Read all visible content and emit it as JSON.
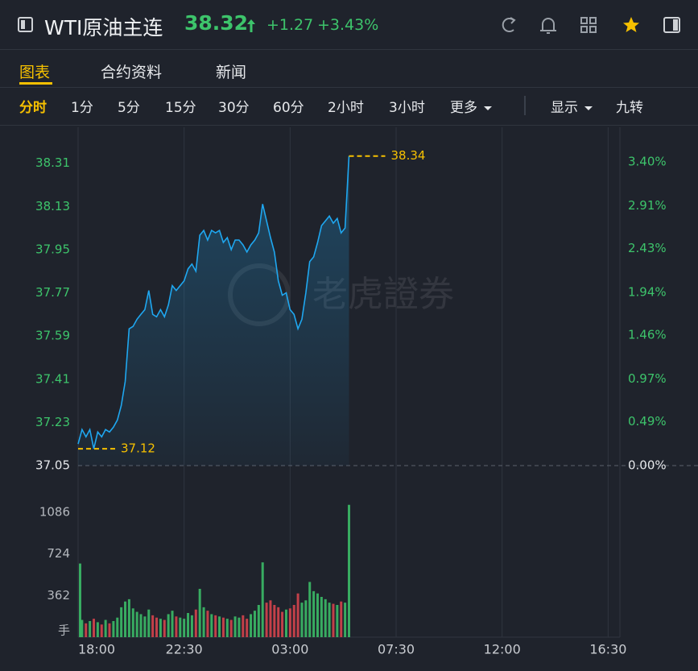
{
  "header": {
    "title": "WTI原油主连",
    "price": "38.32",
    "change": "+1.27",
    "change_pct": "+3.43%"
  },
  "tabs": [
    "图表",
    "合约资料",
    "新闻"
  ],
  "periods": [
    "分时",
    "1分",
    "5分",
    "15分",
    "30分",
    "60分",
    "2小时",
    "3小时",
    "更多",
    "显示",
    "九转"
  ],
  "watermark": "老虎證券",
  "chart_data": [
    {
      "type": "line",
      "color": "#1fa7f0",
      "x": [
        "18:00",
        "18:10",
        "18:20",
        "18:30",
        "18:40",
        "18:50",
        "19:00",
        "19:10",
        "19:20",
        "19:30",
        "19:40",
        "19:50",
        "20:00",
        "20:10",
        "20:20",
        "20:30",
        "20:40",
        "20:50",
        "21:00",
        "21:10",
        "21:20",
        "21:30",
        "21:40",
        "21:50",
        "22:00",
        "22:10",
        "22:20",
        "22:30",
        "22:40",
        "22:50",
        "23:00",
        "23:10",
        "23:20",
        "23:30",
        "23:40",
        "23:50",
        "00:00",
        "00:10",
        "00:20",
        "00:30",
        "00:40",
        "00:50",
        "01:00",
        "01:10",
        "01:20",
        "01:30",
        "01:40",
        "01:50",
        "02:00",
        "02:10",
        "02:20",
        "02:30",
        "02:40",
        "02:50",
        "03:00",
        "03:10",
        "03:20",
        "03:30",
        "03:40",
        "03:50",
        "04:00",
        "04:10",
        "04:20",
        "04:30",
        "04:40",
        "04:50",
        "05:00",
        "05:10",
        "05:20",
        "05:30"
      ],
      "values": [
        37.14,
        37.2,
        37.17,
        37.2,
        37.12,
        37.19,
        37.17,
        37.2,
        37.19,
        37.21,
        37.24,
        37.3,
        37.4,
        37.62,
        37.63,
        37.66,
        37.68,
        37.7,
        37.78,
        37.68,
        37.67,
        37.7,
        37.67,
        37.72,
        37.8,
        37.78,
        37.8,
        37.82,
        37.87,
        37.89,
        37.86,
        38.01,
        38.03,
        37.99,
        38.03,
        38.02,
        38.03,
        37.98,
        38.0,
        37.95,
        37.99,
        37.99,
        37.97,
        37.94,
        37.97,
        37.99,
        38.02,
        38.14,
        38.07,
        38.0,
        37.94,
        37.82,
        37.76,
        37.77,
        37.7,
        37.68,
        37.62,
        37.66,
        37.77,
        37.9,
        37.92,
        37.98,
        38.05,
        38.07,
        38.09,
        38.06,
        38.08,
        38.02,
        38.04,
        38.34
      ],
      "xlim": [
        "18:00",
        "17:00"
      ],
      "xticks": [
        "18:00",
        "22:30",
        "03:00",
        "07:30",
        "12:00",
        "16:30"
      ],
      "ylim": [
        37.05,
        38.46
      ],
      "yticks": [
        37.05,
        37.23,
        37.41,
        37.59,
        37.77,
        37.95,
        38.13,
        38.31
      ],
      "y2lim": [
        0,
        3.79
      ],
      "y2ticks": [
        {
          "value": 0,
          "label": "0.00%"
        },
        {
          "value": 0.49,
          "label": "0.49%"
        },
        {
          "value": 0.97,
          "label": "0.97%"
        },
        {
          "value": 1.46,
          "label": "1.46%"
        },
        {
          "value": 1.94,
          "label": "1.94%"
        },
        {
          "value": 2.43,
          "label": "2.43%"
        },
        {
          "value": 2.91,
          "label": "2.91%"
        },
        {
          "value": 3.4,
          "label": "3.40%"
        }
      ],
      "high": 38.34,
      "low": 37.12
    },
    {
      "type": "bar",
      "up_color": "#3dc46b",
      "down_color": "#e0454f",
      "unit_label": "手",
      "x": [
        "18:00",
        "18:10",
        "18:20",
        "18:30",
        "18:40",
        "18:50",
        "19:00",
        "19:10",
        "19:20",
        "19:30",
        "19:40",
        "19:50",
        "20:00",
        "20:10",
        "20:20",
        "20:30",
        "20:40",
        "20:50",
        "21:00",
        "21:10",
        "21:20",
        "21:30",
        "21:40",
        "21:50",
        "22:00",
        "22:10",
        "22:20",
        "22:30",
        "22:40",
        "22:50",
        "23:00",
        "23:10",
        "23:20",
        "23:30",
        "23:40",
        "23:50",
        "00:00",
        "00:10",
        "00:20",
        "00:30",
        "00:40",
        "00:50",
        "01:00",
        "01:10",
        "01:20",
        "01:30",
        "01:40",
        "01:50",
        "02:00",
        "02:10",
        "02:20",
        "02:30",
        "02:40",
        "02:50",
        "03:00",
        "03:10",
        "03:20",
        "03:30",
        "03:40",
        "03:50",
        "04:00",
        "04:10",
        "04:20",
        "04:30",
        "04:40",
        "04:50",
        "05:00",
        "05:10",
        "05:20",
        "05:30"
      ],
      "values": [
        640,
        150,
        120,
        140,
        160,
        130,
        110,
        150,
        120,
        140,
        170,
        260,
        310,
        330,
        250,
        220,
        200,
        180,
        240,
        190,
        170,
        160,
        150,
        200,
        230,
        180,
        170,
        160,
        210,
        190,
        240,
        420,
        260,
        230,
        200,
        190,
        180,
        170,
        160,
        150,
        180,
        170,
        190,
        160,
        200,
        230,
        280,
        650,
        300,
        320,
        280,
        260,
        220,
        240,
        250,
        280,
        380,
        300,
        320,
        480,
        400,
        380,
        350,
        330,
        300,
        290,
        280,
        310,
        300,
        1150
      ],
      "ylim": [
        0,
        1400
      ],
      "yticks": [
        362,
        724,
        1086
      ]
    }
  ]
}
